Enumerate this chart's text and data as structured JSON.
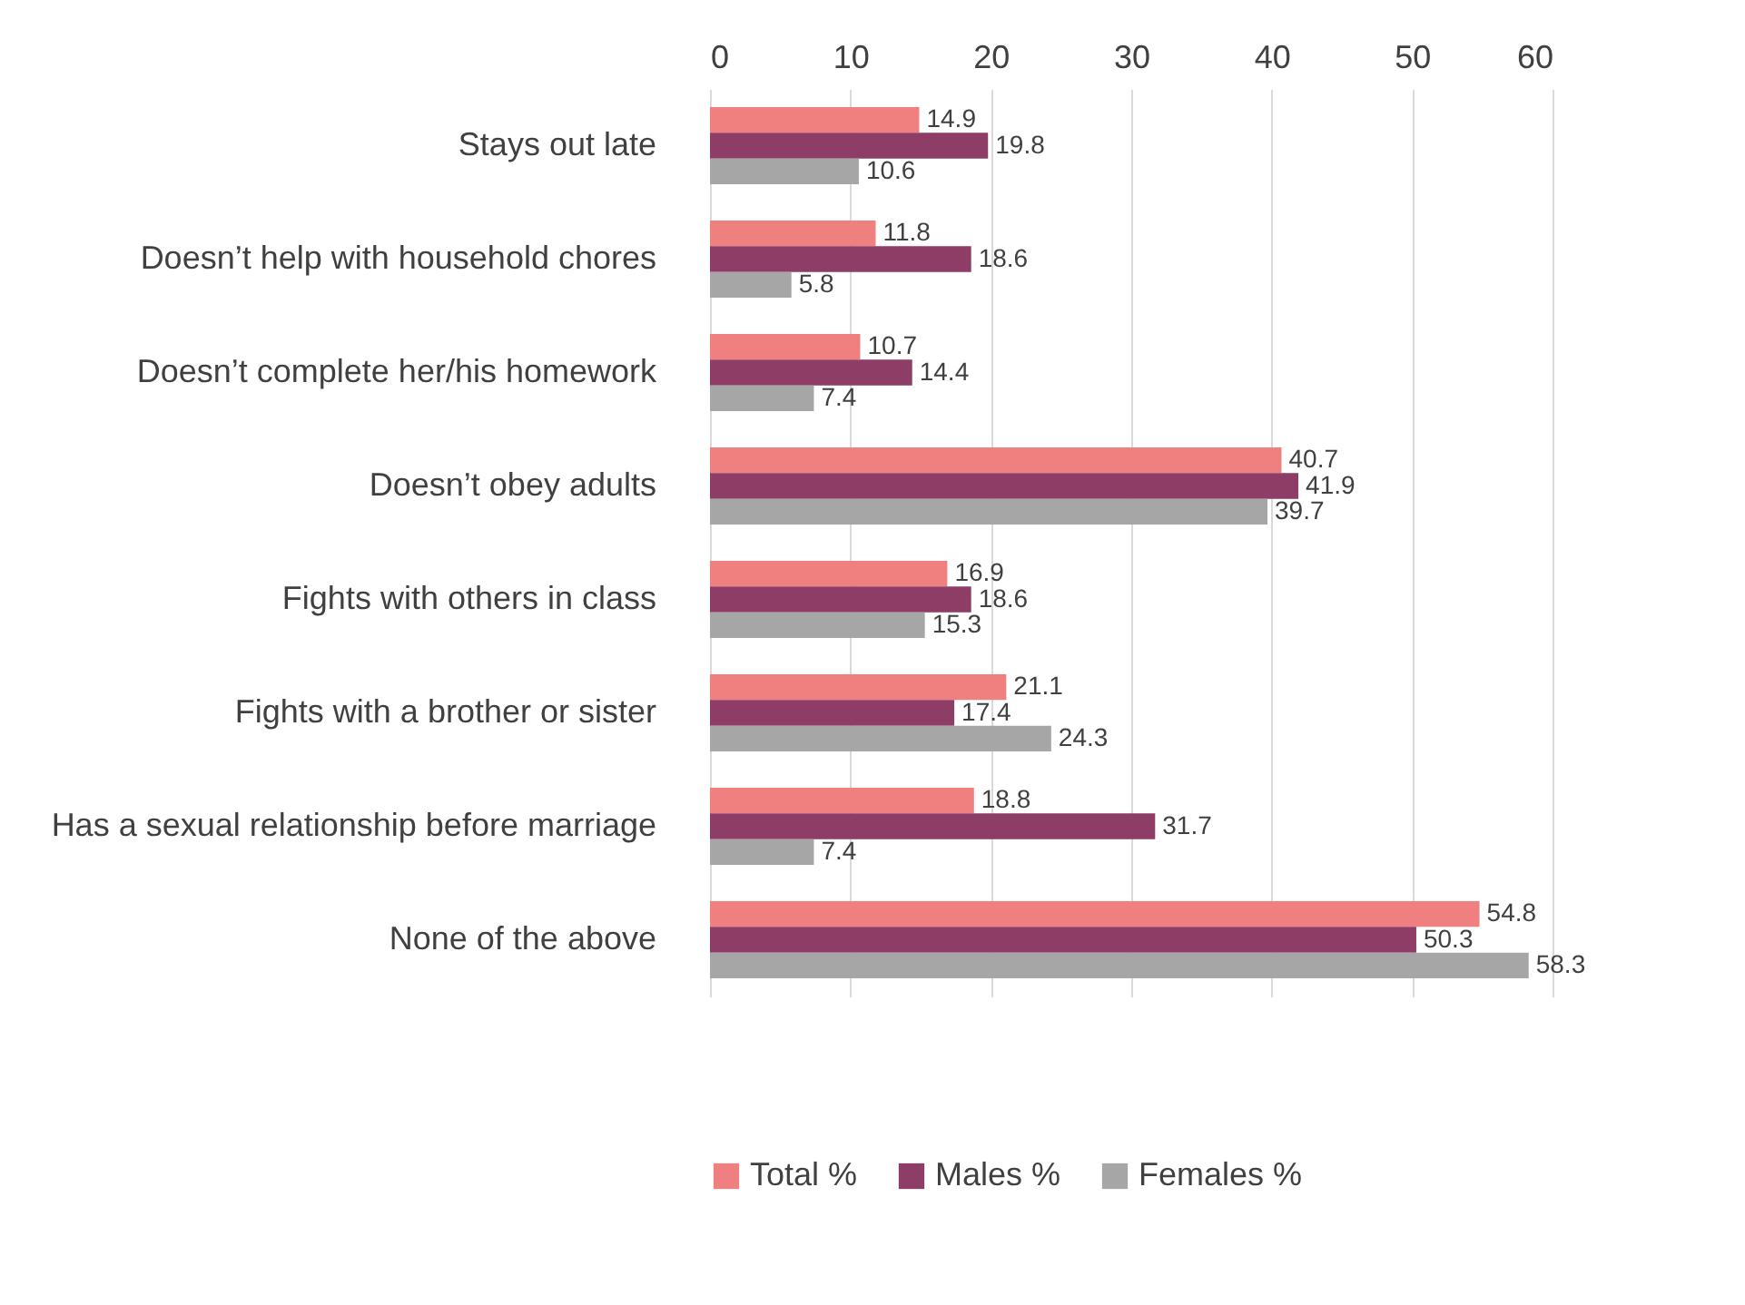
{
  "chart_data": {
    "type": "bar",
    "orientation": "horizontal",
    "categories": [
      "Stays out late",
      "Doesn’t help with household chores",
      "Doesn’t complete her/his homework",
      "Doesn’t obey adults",
      "Fights with others in class",
      "Fights with a brother or sister",
      "Has a sexual relationship before marriage",
      "None of the above"
    ],
    "series": [
      {
        "name": "Total %",
        "color": "#f08080",
        "values": [
          14.9,
          11.8,
          10.7,
          40.7,
          16.9,
          21.1,
          18.8,
          54.8
        ]
      },
      {
        "name": "Males %",
        "color": "#8e3e66",
        "values": [
          19.8,
          18.6,
          14.4,
          41.9,
          18.6,
          17.4,
          31.7,
          50.3
        ]
      },
      {
        "name": "Females %",
        "color": "#a6a6a6",
        "values": [
          10.6,
          5.8,
          7.4,
          39.7,
          15.3,
          24.3,
          7.4,
          58.3
        ]
      }
    ],
    "xlim": [
      0,
      60
    ],
    "xticks": [
      0,
      10,
      20,
      30,
      40,
      50,
      60
    ],
    "grid": "x",
    "legend": "bottom",
    "data_labels": true
  }
}
